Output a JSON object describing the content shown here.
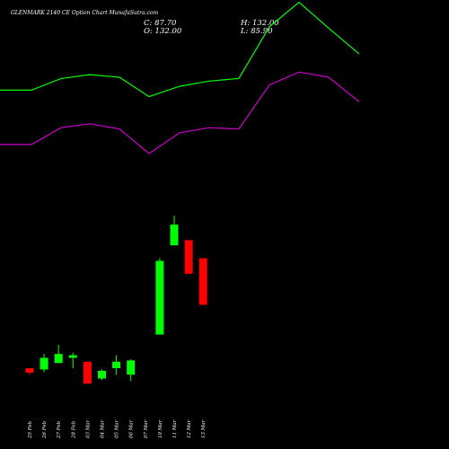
{
  "header": {
    "title": "GLENMARK 2140  CE Option  Chart MunafaSutra.com",
    "close": "C: 87.70",
    "high": "H: 132.00",
    "open": "O: 132.00",
    "low": "L: 85.90"
  },
  "colors": {
    "background": "#000000",
    "up": "#00ff00",
    "down": "#ff0000",
    "upper_band": "#00ff00",
    "lower_band": "#cc00cc",
    "text": "#ffffff"
  },
  "chart_data": {
    "type": "candlestick",
    "categories": [
      "25 Feb",
      "26 Feb",
      "27 Feb",
      "28 Feb",
      "03 Mar",
      "04 Mar",
      "05 Mar",
      "06 Mar",
      "07 Mar",
      "10 Mar",
      "11 Mar",
      "12 Mar",
      "13 Mar"
    ],
    "candles": [
      {
        "date": "25 Feb",
        "open": 25.0,
        "high": 25.0,
        "low": 20.0,
        "close": 21.5
      },
      {
        "date": "26 Feb",
        "open": 24.0,
        "high": 36.0,
        "low": 22.0,
        "close": 33.0
      },
      {
        "date": "27 Feb",
        "open": 29.0,
        "high": 43.0,
        "low": 29.0,
        "close": 36.0
      },
      {
        "date": "28 Feb",
        "open": 33.0,
        "high": 37.0,
        "low": 25.0,
        "close": 35.0
      },
      {
        "date": "03 Mar",
        "open": 30.0,
        "high": 30.0,
        "low": 13.0,
        "close": 13.0
      },
      {
        "date": "04 Mar",
        "open": 17.0,
        "high": 24.0,
        "low": 16.0,
        "close": 23.0
      },
      {
        "date": "05 Mar",
        "open": 25.0,
        "high": 35.0,
        "low": 20.0,
        "close": 30.0
      },
      {
        "date": "06 Mar",
        "open": 20.0,
        "high": 32.0,
        "low": 15.0,
        "close": 31.0
      },
      {
        "date": "10 Mar",
        "open": 51.0,
        "high": 110.0,
        "low": 51.0,
        "close": 108.0
      },
      {
        "date": "11 Mar",
        "open": 120.0,
        "high": 143.0,
        "low": 120.0,
        "close": 136.0
      },
      {
        "date": "12 Mar",
        "open": 124.0,
        "high": 124.0,
        "low": 98.0,
        "close": 98.0
      },
      {
        "date": "13 Mar",
        "open": 110.0,
        "high": 110.0,
        "low": 74.0,
        "close": 74.0
      }
    ],
    "upper_band": [
      240,
      240,
      249,
      252,
      250,
      235,
      243,
      247,
      249,
      289,
      308,
      288,
      268
    ],
    "lower_band": [
      198,
      198,
      211,
      214,
      210,
      191,
      207,
      211,
      210,
      244,
      254,
      250,
      231
    ],
    "ylim": [
      0,
      300
    ],
    "grid": false
  }
}
